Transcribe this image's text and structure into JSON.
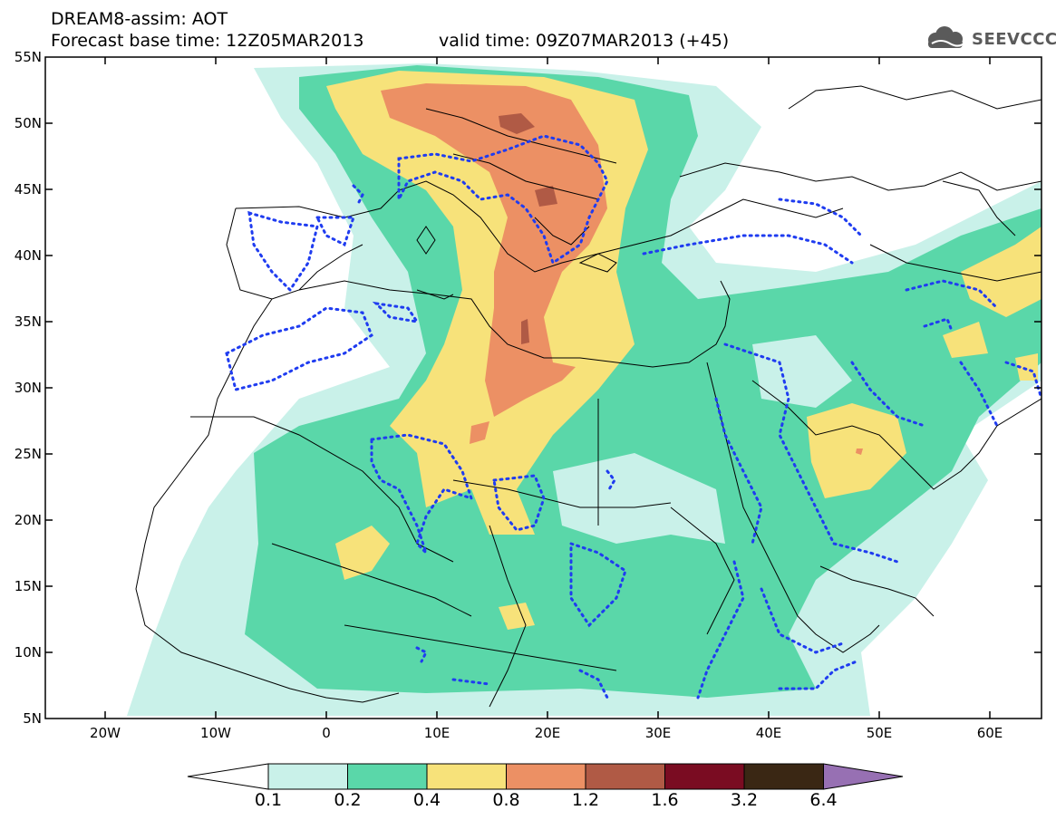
{
  "header": {
    "title_line1": "DREAM8-assim: AOT",
    "title_line2": "Forecast base time: 12Z05MAR2013",
    "valid_time": "valid time: 09Z07MAR2013 (+45)",
    "logo_text": "SEEVCCC",
    "logo_icon": "cloud-icon"
  },
  "map": {
    "lat_labels": [
      "55N",
      "50N",
      "45N",
      "40N",
      "35N",
      "30N",
      "25N",
      "20N",
      "15N",
      "10N",
      "5N"
    ],
    "lon_labels": [
      "20W",
      "10W",
      "0",
      "10E",
      "20E",
      "30E",
      "40E",
      "50E",
      "60E"
    ],
    "lat_range": [
      5,
      55
    ],
    "lon_range": [
      -25,
      65
    ]
  },
  "colorbar": {
    "labels": [
      "0.1",
      "0.2",
      "0.4",
      "0.8",
      "1.2",
      "1.6",
      "3.2",
      "6.4"
    ],
    "colors": [
      "#c9f1e9",
      "#5ad7a9",
      "#f7e27a",
      "#ec9064",
      "#b05a45",
      "#7a0c22",
      "#3a2714",
      "#9770b3"
    ]
  },
  "colors": {
    "contour": "#1f3cf0",
    "coast": "#000000"
  }
}
